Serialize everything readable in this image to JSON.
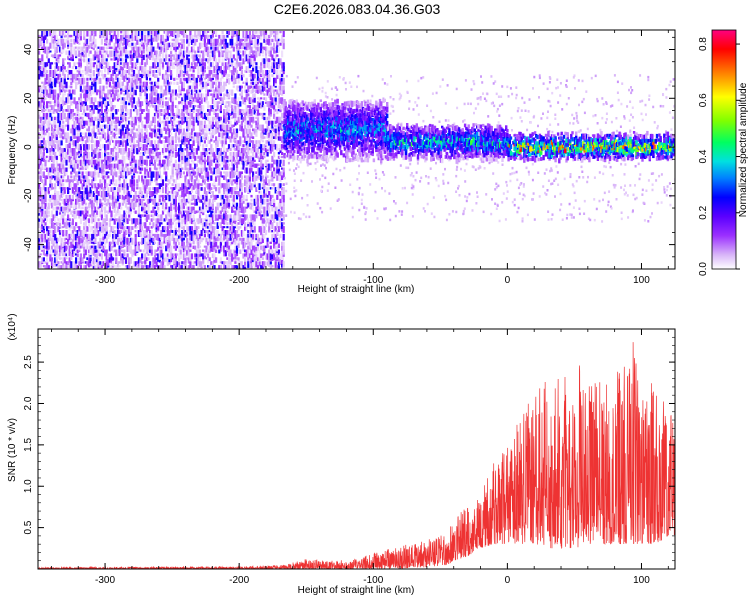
{
  "figure": {
    "title": "C2E6.2026.083.04.36.G03"
  },
  "chart_data": [
    {
      "type": "heatmap",
      "xlabel": "Height of straight line (km)",
      "ylabel": "Frequency (Hz)",
      "xlim": [
        -350,
        125
      ],
      "ylim": [
        -50,
        48
      ],
      "x_ticks": [
        -300,
        -200,
        -100,
        0,
        100
      ],
      "y_ticks": [
        -40,
        -20,
        0,
        20,
        40
      ],
      "grid": false,
      "colorbar": {
        "label": "Normalized spectral amplitude",
        "range": [
          0.0,
          0.85
        ],
        "ticks": [
          0.0,
          0.2,
          0.4,
          0.6,
          0.8
        ],
        "colormap": [
          "#ffffff",
          "#d8b4f8",
          "#9b30ff",
          "#5a00ff",
          "#0000ff",
          "#0080ff",
          "#00e0e0",
          "#00ff60",
          "#80ff00",
          "#ffff00",
          "#ff8000",
          "#ff0000",
          "#ff0080"
        ]
      },
      "regions": [
        {
          "x_range": [
            -350,
            -167
          ],
          "freq_range": [
            -50,
            48
          ],
          "amplitude": 0.08,
          "pattern": "broadband noise"
        },
        {
          "x_range": [
            -167,
            -90
          ],
          "freq_center": 8,
          "freq_halfwidth": 12,
          "amplitude": 0.3
        },
        {
          "x_range": [
            -90,
            0
          ],
          "freq_center": 3,
          "freq_halfwidth": 7,
          "amplitude": 0.35
        },
        {
          "x_range": [
            0,
            125
          ],
          "freq_center": 1,
          "freq_halfwidth": 5,
          "amplitude": 0.5,
          "peak_amplitude": 0.85
        }
      ]
    },
    {
      "type": "line",
      "xlabel": "Height of straight line (km)",
      "ylabel": "SNR (10 * v/v)",
      "yscale_label": "(x10⁴)",
      "xlim": [
        -350,
        125
      ],
      "ylim": [
        0,
        2.9
      ],
      "x_ticks": [
        -300,
        -200,
        -100,
        0,
        100
      ],
      "y_ticks": [
        0.5,
        1.0,
        1.5,
        2.0,
        2.5
      ],
      "y_tick_labels": [
        "0.5",
        "1.0",
        "1.5",
        "2.0",
        "2.5"
      ],
      "grid": false,
      "series": [
        {
          "color": "#ee3333",
          "envelope": {
            "x": [
              -350,
              -200,
              -167,
              -160,
              -150,
              -130,
              -110,
              -100,
              -90,
              -75,
              -60,
              -45,
              -40,
              -30,
              -20,
              -10,
              0,
              10,
              20,
              30,
              40,
              50,
              60,
              70,
              80,
              90,
              95,
              100,
              110,
              120,
              125
            ],
            "min": [
              0.0,
              0.0,
              0.0,
              0.0,
              0.0,
              0.0,
              0.0,
              0.0,
              0.0,
              0.01,
              0.02,
              0.05,
              0.1,
              0.15,
              0.25,
              0.3,
              0.3,
              0.3,
              0.3,
              0.25,
              0.25,
              0.25,
              0.3,
              0.3,
              0.3,
              0.3,
              0.3,
              0.3,
              0.3,
              0.4,
              0.4
            ],
            "max": [
              0.02,
              0.03,
              0.05,
              0.08,
              0.12,
              0.1,
              0.12,
              0.2,
              0.25,
              0.3,
              0.35,
              0.45,
              0.6,
              0.8,
              1.0,
              1.3,
              1.6,
              1.9,
              2.2,
              2.3,
              2.4,
              2.5,
              2.4,
              2.3,
              2.4,
              2.6,
              2.85,
              2.4,
              2.2,
              2.0,
              1.9
            ]
          }
        }
      ]
    }
  ]
}
